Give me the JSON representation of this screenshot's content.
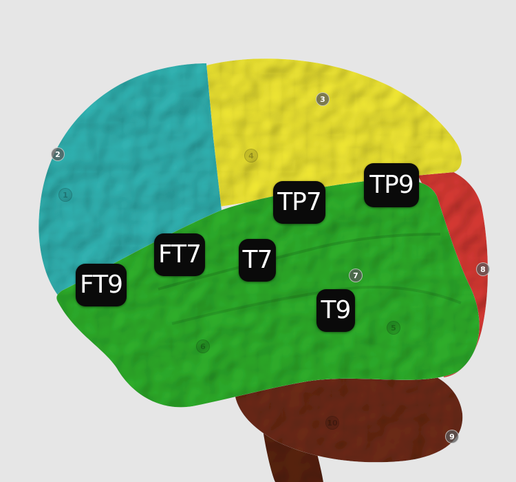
{
  "colors": {
    "background": "#e6e6e6",
    "frontal_lobe": "#32b5b4",
    "parietal_lobe": "#f2e934",
    "occipital_lobe": "#d93a34",
    "temporal_lobe": "#2fb12c",
    "cerebellum": "#6e2b16",
    "label_background": "#0a0a0a",
    "label_text": "#ffffff"
  },
  "electrodes": [
    {
      "label": "FT9"
    },
    {
      "label": "FT7"
    },
    {
      "label": "T7"
    },
    {
      "label": "TP7"
    },
    {
      "label": "TP9"
    },
    {
      "label": "T9"
    }
  ],
  "markers": [
    {
      "label": "2"
    },
    {
      "label": "3"
    },
    {
      "label": "7"
    },
    {
      "label": "8"
    },
    {
      "label": "9"
    },
    {
      "label": "1"
    },
    {
      "label": "4"
    },
    {
      "label": "5"
    },
    {
      "label": "6"
    },
    {
      "label": "10"
    }
  ]
}
